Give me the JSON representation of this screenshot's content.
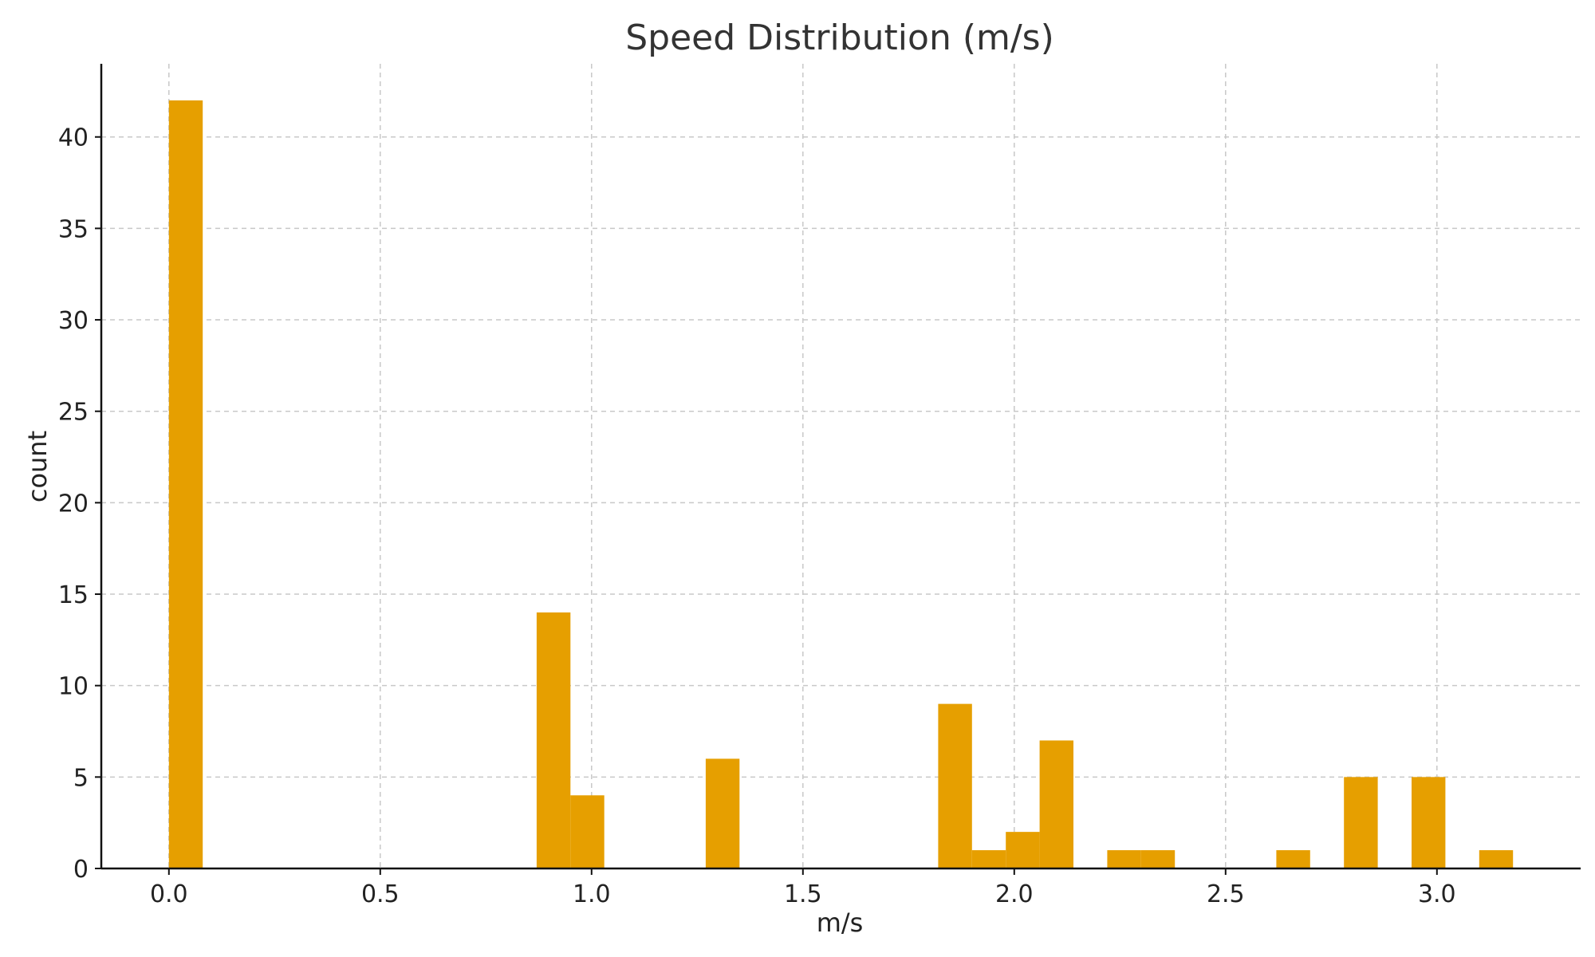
{
  "chart_data": {
    "type": "bar",
    "title": "Speed Distribution (m/s)",
    "xlabel": "m/s",
    "ylabel": "count",
    "xlim": [
      -0.16,
      3.34
    ],
    "ylim": [
      0,
      44
    ],
    "xticks": [
      "0.0",
      "0.5",
      "1.0",
      "1.5",
      "2.0",
      "2.5",
      "3.0"
    ],
    "yticks": [
      "0",
      "5",
      "10",
      "15",
      "20",
      "25",
      "30",
      "35",
      "40"
    ],
    "grid": true,
    "bar_color": "#E69F00",
    "bins": [
      {
        "x0": 0.0,
        "x1": 0.08,
        "count": 42
      },
      {
        "x0": 0.87,
        "x1": 0.95,
        "count": 14
      },
      {
        "x0": 0.95,
        "x1": 1.03,
        "count": 4
      },
      {
        "x0": 1.27,
        "x1": 1.35,
        "count": 6
      },
      {
        "x0": 1.82,
        "x1": 1.9,
        "count": 9
      },
      {
        "x0": 1.9,
        "x1": 1.98,
        "count": 1
      },
      {
        "x0": 1.98,
        "x1": 2.06,
        "count": 2
      },
      {
        "x0": 2.06,
        "x1": 2.14,
        "count": 7
      },
      {
        "x0": 2.22,
        "x1": 2.3,
        "count": 1
      },
      {
        "x0": 2.3,
        "x1": 2.38,
        "count": 1
      },
      {
        "x0": 2.62,
        "x1": 2.7,
        "count": 1
      },
      {
        "x0": 2.78,
        "x1": 2.86,
        "count": 5
      },
      {
        "x0": 2.94,
        "x1": 3.02,
        "count": 5
      },
      {
        "x0": 3.1,
        "x1": 3.18,
        "count": 1
      }
    ]
  }
}
